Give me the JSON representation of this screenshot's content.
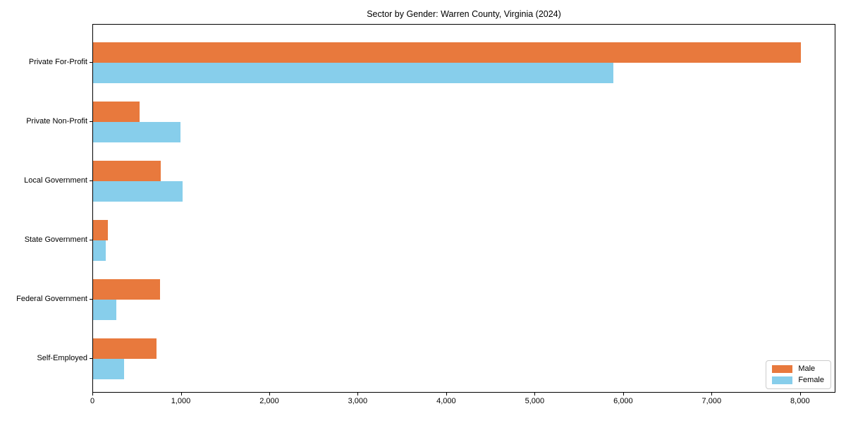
{
  "chart_data": {
    "type": "bar",
    "orientation": "horizontal",
    "title": "Sector by Gender: Warren County, Virginia (2024)",
    "categories": [
      "Private For-Profit",
      "Private Non-Profit",
      "Local Government",
      "State Government",
      "Federal Government",
      "Self-Employed"
    ],
    "series": [
      {
        "name": "Male",
        "color": "#E8793D",
        "values": [
          8000,
          525,
          765,
          170,
          755,
          715
        ]
      },
      {
        "name": "Female",
        "color": "#87CEEB",
        "values": [
          5880,
          990,
          1010,
          140,
          265,
          350
        ]
      }
    ],
    "xlabel": "",
    "ylabel": "",
    "xlim": [
      0,
      8400
    ],
    "xticks": [
      0,
      1000,
      2000,
      3000,
      4000,
      5000,
      6000,
      7000,
      8000
    ],
    "xtick_labels": [
      "0",
      "1,000",
      "2,000",
      "3,000",
      "4,000",
      "5,000",
      "6,000",
      "7,000",
      "8,000"
    ],
    "grid": false,
    "legend_position": "lower right",
    "plot_border_color": "#000000",
    "background_color": "#ffffff"
  }
}
